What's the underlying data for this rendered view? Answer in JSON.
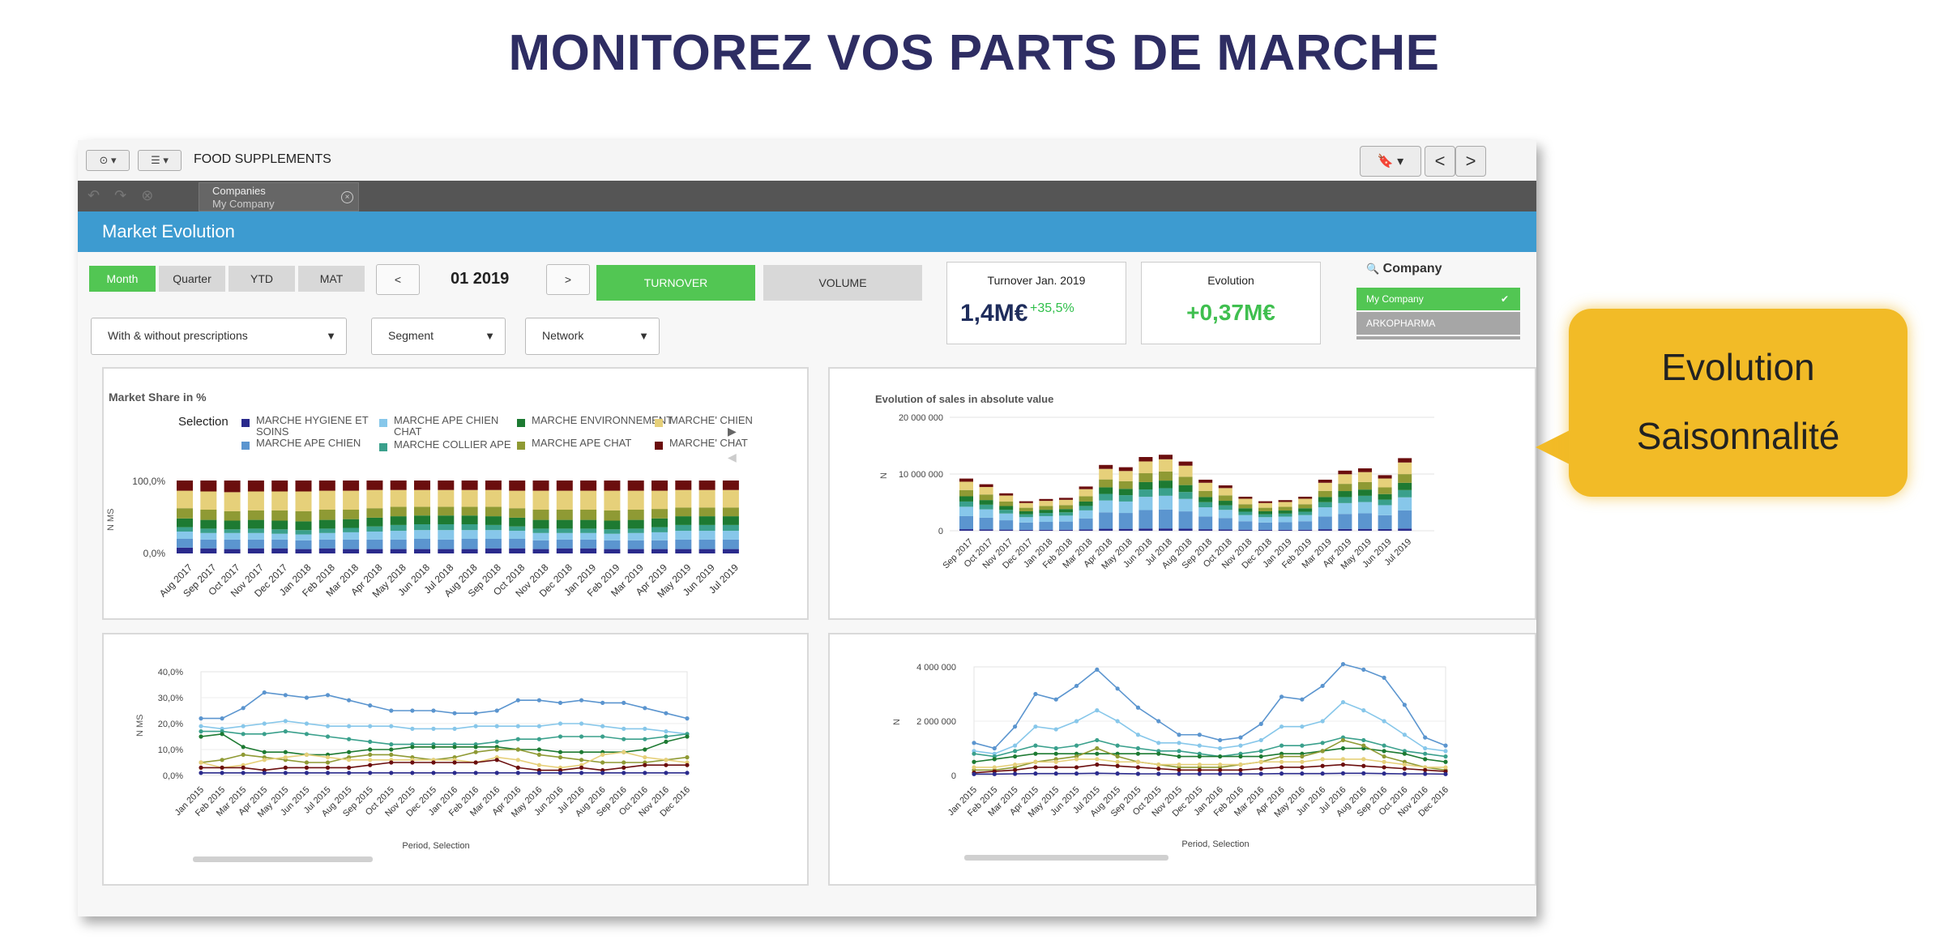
{
  "page_title": "MONITOREZ VOS PARTS DE MARCHE",
  "toolbar": {
    "app_title": "FOOD SUPPLEMENTS",
    "prev_label": "<",
    "next_label": ">"
  },
  "selection": {
    "field": "Companies",
    "value": "My Company"
  },
  "section_title": "Market Evolution",
  "period_buttons": [
    "Month",
    "Quarter",
    "YTD",
    "MAT"
  ],
  "active_period": "Month",
  "date_nav": {
    "prev": "<",
    "date": "01 2019",
    "next": ">"
  },
  "measure_buttons": {
    "turnover": "TURNOVER",
    "volume": "VOLUME",
    "active": "turnover"
  },
  "filters": [
    {
      "label": "With & without prescriptions"
    },
    {
      "label": "Segment"
    },
    {
      "label": "Network"
    }
  ],
  "kpis": {
    "turnover": {
      "title": "Turnover Jan. 2019",
      "value": "1,4M€",
      "delta": "+35,5%"
    },
    "evolution": {
      "title": "Evolution",
      "value": "+0,37M€"
    }
  },
  "company_filter": {
    "label": "Company",
    "items": [
      {
        "name": "My Company",
        "selected": true
      },
      {
        "name": "ARKOPHARMA",
        "selected": false
      }
    ]
  },
  "callout": {
    "line1": "Evolution",
    "line2": "Saisonnalité"
  },
  "colors": {
    "accent_blue": "#3d9bd0",
    "accent_green": "#52c653",
    "title_navy": "#2e2d63",
    "callout": "#f2bb27",
    "kpi_navy": "#1f2d5c"
  },
  "series_colors": [
    "#2a2a8c",
    "#5b95cf",
    "#87c7ea",
    "#3aa08c",
    "#1d7a32",
    "#8f9a34",
    "#e6d07a",
    "#6b0e0e"
  ],
  "chart_data": [
    {
      "type": "bar",
      "stacked": true,
      "title": "Market Share in %",
      "legend_title": "Selection",
      "ylabel": "N MS",
      "y_ticks": [
        "100,0%",
        "0,0%"
      ],
      "legend": [
        "MARCHE HYGIENE ET SOINS",
        "MARCHE APE CHIEN",
        "MARCHE APE CHIEN CHAT",
        "MARCHE COLLIER APE",
        "MARCHE ENVIRONNEMENT",
        "MARCHE APE CHAT",
        "MARCHE' CHIEN",
        "MARCHE' CHAT"
      ],
      "categories": [
        "Aug 2017",
        "Sep 2017",
        "Oct 2017",
        "Nov 2017",
        "Dec 2017",
        "Jan 2018",
        "Feb 2018",
        "Mar 2018",
        "Apr 2018",
        "May 2018",
        "Jun 2018",
        "Jul 2018",
        "Aug 2018",
        "Sep 2018",
        "Oct 2018",
        "Nov 2018",
        "Dec 2018",
        "Jan 2019",
        "Feb 2019",
        "Mar 2019",
        "Apr 2019",
        "May 2019",
        "Jun 2019",
        "Jul 2019"
      ],
      "series": [
        {
          "name": "MARCHE HYGIENE ET SOINS",
          "values": [
            8,
            7,
            6,
            7,
            7,
            6,
            7,
            6,
            6,
            6,
            6,
            6,
            6,
            7,
            7,
            6,
            7,
            7,
            6,
            6,
            6,
            6,
            6,
            6
          ]
        },
        {
          "name": "MARCHE APE CHIEN",
          "values": [
            12,
            12,
            13,
            12,
            12,
            12,
            12,
            13,
            13,
            13,
            14,
            13,
            14,
            13,
            13,
            12,
            12,
            12,
            12,
            12,
            12,
            13,
            13,
            13
          ]
        },
        {
          "name": "MARCHE APE CHIEN CHAT",
          "values": [
            10,
            9,
            9,
            9,
            8,
            8,
            9,
            10,
            11,
            12,
            12,
            13,
            12,
            12,
            11,
            10,
            9,
            9,
            9,
            10,
            11,
            12,
            12,
            12
          ]
        },
        {
          "name": "MARCHE COLLIER APE",
          "values": [
            6,
            6,
            5,
            6,
            6,
            6,
            6,
            6,
            7,
            8,
            8,
            8,
            8,
            7,
            6,
            6,
            6,
            6,
            6,
            6,
            7,
            8,
            8,
            8
          ]
        },
        {
          "name": "MARCHE ENVIRONNEMENT",
          "values": [
            12,
            12,
            12,
            12,
            12,
            12,
            12,
            12,
            12,
            12,
            12,
            12,
            12,
            12,
            12,
            12,
            12,
            12,
            12,
            12,
            12,
            12,
            12,
            12
          ]
        },
        {
          "name": "MARCHE APE CHAT",
          "values": [
            14,
            14,
            13,
            13,
            14,
            14,
            14,
            13,
            13,
            13,
            12,
            12,
            12,
            13,
            13,
            14,
            14,
            14,
            14,
            14,
            13,
            12,
            12,
            12
          ]
        },
        {
          "name": "MARCHE' CHIEN",
          "values": [
            24,
            25,
            26,
            26,
            26,
            27,
            26,
            26,
            25,
            23,
            23,
            23,
            23,
            23,
            24,
            26,
            26,
            26,
            27,
            26,
            25,
            24,
            24,
            24
          ]
        },
        {
          "name": "MARCHE' CHAT",
          "values": [
            14,
            15,
            16,
            15,
            15,
            15,
            14,
            14,
            13,
            13,
            13,
            13,
            13,
            13,
            14,
            14,
            14,
            14,
            14,
            14,
            14,
            13,
            13,
            13
          ]
        }
      ]
    },
    {
      "type": "bar",
      "stacked": true,
      "title": "Evolution of sales in absolute value",
      "ylabel": "N",
      "y_ticks": [
        "20 000 000",
        "10 000 000",
        "0"
      ],
      "ylim": [
        0,
        20000000
      ],
      "categories": [
        "Sep 2017",
        "Oct 2017",
        "Nov 2017",
        "Dec 2017",
        "Jan 2018",
        "Feb 2018",
        "Mar 2018",
        "Apr 2018",
        "May 2018",
        "Jun 2018",
        "Jul 2018",
        "Aug 2018",
        "Sep 2018",
        "Oct 2018",
        "Nov 2018",
        "Dec 2018",
        "Jan 2019",
        "Feb 2019",
        "Mar 2019",
        "Apr 2019",
        "May 2019",
        "Jun 2019",
        "Jul 2019"
      ],
      "totals": [
        9200000,
        8200000,
        6600000,
        5200000,
        5600000,
        5800000,
        7800000,
        11600000,
        11200000,
        13000000,
        13400000,
        12200000,
        9000000,
        8000000,
        6000000,
        5200000,
        5400000,
        6000000,
        9000000,
        10600000,
        11000000,
        9800000,
        12800000
      ],
      "series_shares": [
        0.03,
        0.25,
        0.18,
        0.1,
        0.1,
        0.12,
        0.16,
        0.06
      ]
    },
    {
      "type": "line",
      "xlabel": "Period, Selection",
      "ylabel": "N MS",
      "y_ticks": [
        "40,0%",
        "30,0%",
        "20,0%",
        "10,0%",
        "0,0%"
      ],
      "ylim": [
        0,
        40
      ],
      "categories": [
        "Jan 2015",
        "Feb 2015",
        "Mar 2015",
        "Apr 2015",
        "May 2015",
        "Jun 2015",
        "Jul 2015",
        "Aug 2015",
        "Sep 2015",
        "Oct 2015",
        "Nov 2015",
        "Dec 2015",
        "Jan 2016",
        "Feb 2016",
        "Mar 2016",
        "Apr 2016",
        "May 2016",
        "Jun 2016",
        "Jul 2016",
        "Aug 2016",
        "Sep 2016",
        "Oct 2016",
        "Nov 2016",
        "Dec 2016"
      ],
      "series": [
        {
          "values": [
            22,
            22,
            26,
            32,
            31,
            30,
            31,
            29,
            27,
            25,
            25,
            25,
            24,
            24,
            25,
            29,
            29,
            28,
            29,
            28,
            28,
            26,
            24,
            22
          ]
        },
        {
          "values": [
            19,
            18,
            19,
            20,
            21,
            20,
            19,
            19,
            19,
            19,
            18,
            18,
            18,
            19,
            19,
            19,
            19,
            20,
            20,
            19,
            18,
            18,
            17,
            16
          ]
        },
        {
          "values": [
            17,
            17,
            16,
            16,
            17,
            16,
            15,
            14,
            13,
            12,
            12,
            12,
            12,
            12,
            13,
            14,
            14,
            15,
            15,
            15,
            14,
            14,
            15,
            16
          ]
        },
        {
          "values": [
            15,
            16,
            11,
            9,
            9,
            8,
            8,
            9,
            10,
            10,
            11,
            11,
            11,
            11,
            11,
            10,
            10,
            9,
            9,
            9,
            9,
            10,
            13,
            15
          ]
        },
        {
          "values": [
            5,
            6,
            8,
            7,
            6,
            5,
            5,
            7,
            8,
            8,
            7,
            6,
            7,
            9,
            10,
            10,
            8,
            7,
            6,
            5,
            5,
            5,
            6,
            7
          ]
        },
        {
          "values": [
            5,
            3,
            4,
            6,
            7,
            8,
            7,
            6,
            6,
            6,
            6,
            6,
            6,
            5,
            7,
            6,
            4,
            3,
            4,
            8,
            9,
            7,
            6,
            5
          ]
        },
        {
          "values": [
            3,
            3,
            3,
            2,
            3,
            3,
            3,
            3,
            4,
            5,
            5,
            5,
            5,
            5,
            6,
            3,
            2,
            2,
            3,
            2,
            3,
            4,
            4,
            4
          ]
        },
        {
          "values": [
            1,
            1,
            1,
            1,
            1,
            1,
            1,
            1,
            1,
            1,
            1,
            1,
            1,
            1,
            1,
            1,
            1,
            1,
            1,
            1,
            1,
            1,
            1,
            1
          ]
        }
      ]
    },
    {
      "type": "line",
      "xlabel": "Period, Selection",
      "ylabel": "N",
      "y_ticks": [
        "4 000 000",
        "2 000 000",
        "0"
      ],
      "ylim": [
        0,
        4000000
      ],
      "categories": [
        "Jan 2015",
        "Feb 2015",
        "Mar 2015",
        "Apr 2015",
        "May 2015",
        "Jun 2015",
        "Jul 2015",
        "Aug 2015",
        "Sep 2015",
        "Oct 2015",
        "Nov 2015",
        "Dec 2015",
        "Jan 2016",
        "Feb 2016",
        "Mar 2016",
        "Apr 2016",
        "May 2016",
        "Jun 2016",
        "Jul 2016",
        "Aug 2016",
        "Sep 2016",
        "Oct 2016",
        "Nov 2016",
        "Dec 2016"
      ],
      "series": [
        {
          "values": [
            1200000,
            1000000,
            1800000,
            3000000,
            2800000,
            3300000,
            3900000,
            3200000,
            2500000,
            2000000,
            1500000,
            1500000,
            1300000,
            1400000,
            1900000,
            2900000,
            2800000,
            3300000,
            4100000,
            3900000,
            3600000,
            2600000,
            1400000,
            1100000
          ]
        },
        {
          "values": [
            900000,
            800000,
            1100000,
            1800000,
            1700000,
            2000000,
            2400000,
            2000000,
            1500000,
            1200000,
            1200000,
            1100000,
            1000000,
            1100000,
            1300000,
            1800000,
            1800000,
            2000000,
            2700000,
            2400000,
            2000000,
            1500000,
            1000000,
            900000
          ]
        },
        {
          "values": [
            800000,
            700000,
            900000,
            1100000,
            1000000,
            1100000,
            1300000,
            1100000,
            1000000,
            900000,
            900000,
            800000,
            700000,
            800000,
            900000,
            1100000,
            1100000,
            1200000,
            1400000,
            1300000,
            1100000,
            900000,
            800000,
            700000
          ]
        },
        {
          "values": [
            500000,
            600000,
            700000,
            800000,
            800000,
            800000,
            800000,
            800000,
            800000,
            800000,
            700000,
            700000,
            700000,
            700000,
            700000,
            800000,
            800000,
            900000,
            1000000,
            1000000,
            900000,
            800000,
            600000,
            500000
          ]
        },
        {
          "values": [
            200000,
            200000,
            300000,
            500000,
            600000,
            700000,
            1000000,
            700000,
            500000,
            400000,
            300000,
            300000,
            300000,
            400000,
            500000,
            700000,
            700000,
            900000,
            1300000,
            1100000,
            700000,
            500000,
            300000,
            200000
          ]
        },
        {
          "values": [
            300000,
            300000,
            400000,
            500000,
            500000,
            600000,
            600000,
            500000,
            500000,
            400000,
            400000,
            400000,
            400000,
            400000,
            500000,
            500000,
            500000,
            600000,
            600000,
            600000,
            500000,
            400000,
            300000,
            300000
          ]
        },
        {
          "values": [
            100000,
            150000,
            200000,
            300000,
            300000,
            300000,
            400000,
            350000,
            300000,
            250000,
            200000,
            200000,
            200000,
            200000,
            250000,
            300000,
            300000,
            350000,
            400000,
            350000,
            300000,
            250000,
            200000,
            150000
          ]
        },
        {
          "values": [
            50000,
            50000,
            60000,
            70000,
            70000,
            70000,
            80000,
            70000,
            60000,
            60000,
            60000,
            60000,
            60000,
            60000,
            60000,
            70000,
            70000,
            70000,
            80000,
            80000,
            70000,
            60000,
            60000,
            50000
          ]
        }
      ]
    }
  ]
}
